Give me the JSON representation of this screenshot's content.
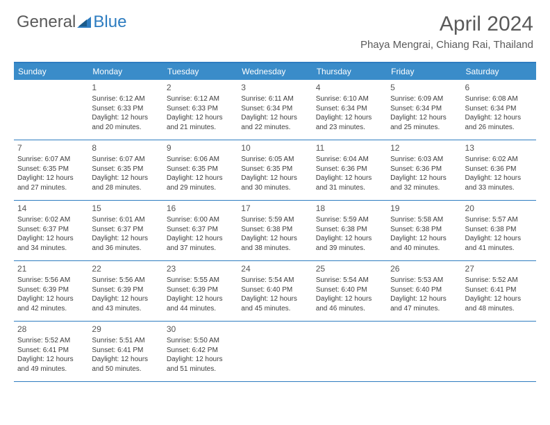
{
  "logo": {
    "part1": "General",
    "part2": "Blue"
  },
  "title": "April 2024",
  "location": "Phaya Mengrai, Chiang Rai, Thailand",
  "colors": {
    "header_bg": "#3a8cc9",
    "border": "#2d7cc0",
    "text": "#333333",
    "title_text": "#5a5a5a"
  },
  "weekdays": [
    "Sunday",
    "Monday",
    "Tuesday",
    "Wednesday",
    "Thursday",
    "Friday",
    "Saturday"
  ],
  "weeks": [
    [
      {
        "n": "",
        "sr": "",
        "ss": "",
        "dl": ""
      },
      {
        "n": "1",
        "sr": "Sunrise: 6:12 AM",
        "ss": "Sunset: 6:33 PM",
        "dl": "Daylight: 12 hours and 20 minutes."
      },
      {
        "n": "2",
        "sr": "Sunrise: 6:12 AM",
        "ss": "Sunset: 6:33 PM",
        "dl": "Daylight: 12 hours and 21 minutes."
      },
      {
        "n": "3",
        "sr": "Sunrise: 6:11 AM",
        "ss": "Sunset: 6:34 PM",
        "dl": "Daylight: 12 hours and 22 minutes."
      },
      {
        "n": "4",
        "sr": "Sunrise: 6:10 AM",
        "ss": "Sunset: 6:34 PM",
        "dl": "Daylight: 12 hours and 23 minutes."
      },
      {
        "n": "5",
        "sr": "Sunrise: 6:09 AM",
        "ss": "Sunset: 6:34 PM",
        "dl": "Daylight: 12 hours and 25 minutes."
      },
      {
        "n": "6",
        "sr": "Sunrise: 6:08 AM",
        "ss": "Sunset: 6:34 PM",
        "dl": "Daylight: 12 hours and 26 minutes."
      }
    ],
    [
      {
        "n": "7",
        "sr": "Sunrise: 6:07 AM",
        "ss": "Sunset: 6:35 PM",
        "dl": "Daylight: 12 hours and 27 minutes."
      },
      {
        "n": "8",
        "sr": "Sunrise: 6:07 AM",
        "ss": "Sunset: 6:35 PM",
        "dl": "Daylight: 12 hours and 28 minutes."
      },
      {
        "n": "9",
        "sr": "Sunrise: 6:06 AM",
        "ss": "Sunset: 6:35 PM",
        "dl": "Daylight: 12 hours and 29 minutes."
      },
      {
        "n": "10",
        "sr": "Sunrise: 6:05 AM",
        "ss": "Sunset: 6:35 PM",
        "dl": "Daylight: 12 hours and 30 minutes."
      },
      {
        "n": "11",
        "sr": "Sunrise: 6:04 AM",
        "ss": "Sunset: 6:36 PM",
        "dl": "Daylight: 12 hours and 31 minutes."
      },
      {
        "n": "12",
        "sr": "Sunrise: 6:03 AM",
        "ss": "Sunset: 6:36 PM",
        "dl": "Daylight: 12 hours and 32 minutes."
      },
      {
        "n": "13",
        "sr": "Sunrise: 6:02 AM",
        "ss": "Sunset: 6:36 PM",
        "dl": "Daylight: 12 hours and 33 minutes."
      }
    ],
    [
      {
        "n": "14",
        "sr": "Sunrise: 6:02 AM",
        "ss": "Sunset: 6:37 PM",
        "dl": "Daylight: 12 hours and 34 minutes."
      },
      {
        "n": "15",
        "sr": "Sunrise: 6:01 AM",
        "ss": "Sunset: 6:37 PM",
        "dl": "Daylight: 12 hours and 36 minutes."
      },
      {
        "n": "16",
        "sr": "Sunrise: 6:00 AM",
        "ss": "Sunset: 6:37 PM",
        "dl": "Daylight: 12 hours and 37 minutes."
      },
      {
        "n": "17",
        "sr": "Sunrise: 5:59 AM",
        "ss": "Sunset: 6:38 PM",
        "dl": "Daylight: 12 hours and 38 minutes."
      },
      {
        "n": "18",
        "sr": "Sunrise: 5:59 AM",
        "ss": "Sunset: 6:38 PM",
        "dl": "Daylight: 12 hours and 39 minutes."
      },
      {
        "n": "19",
        "sr": "Sunrise: 5:58 AM",
        "ss": "Sunset: 6:38 PM",
        "dl": "Daylight: 12 hours and 40 minutes."
      },
      {
        "n": "20",
        "sr": "Sunrise: 5:57 AM",
        "ss": "Sunset: 6:38 PM",
        "dl": "Daylight: 12 hours and 41 minutes."
      }
    ],
    [
      {
        "n": "21",
        "sr": "Sunrise: 5:56 AM",
        "ss": "Sunset: 6:39 PM",
        "dl": "Daylight: 12 hours and 42 minutes."
      },
      {
        "n": "22",
        "sr": "Sunrise: 5:56 AM",
        "ss": "Sunset: 6:39 PM",
        "dl": "Daylight: 12 hours and 43 minutes."
      },
      {
        "n": "23",
        "sr": "Sunrise: 5:55 AM",
        "ss": "Sunset: 6:39 PM",
        "dl": "Daylight: 12 hours and 44 minutes."
      },
      {
        "n": "24",
        "sr": "Sunrise: 5:54 AM",
        "ss": "Sunset: 6:40 PM",
        "dl": "Daylight: 12 hours and 45 minutes."
      },
      {
        "n": "25",
        "sr": "Sunrise: 5:54 AM",
        "ss": "Sunset: 6:40 PM",
        "dl": "Daylight: 12 hours and 46 minutes."
      },
      {
        "n": "26",
        "sr": "Sunrise: 5:53 AM",
        "ss": "Sunset: 6:40 PM",
        "dl": "Daylight: 12 hours and 47 minutes."
      },
      {
        "n": "27",
        "sr": "Sunrise: 5:52 AM",
        "ss": "Sunset: 6:41 PM",
        "dl": "Daylight: 12 hours and 48 minutes."
      }
    ],
    [
      {
        "n": "28",
        "sr": "Sunrise: 5:52 AM",
        "ss": "Sunset: 6:41 PM",
        "dl": "Daylight: 12 hours and 49 minutes."
      },
      {
        "n": "29",
        "sr": "Sunrise: 5:51 AM",
        "ss": "Sunset: 6:41 PM",
        "dl": "Daylight: 12 hours and 50 minutes."
      },
      {
        "n": "30",
        "sr": "Sunrise: 5:50 AM",
        "ss": "Sunset: 6:42 PM",
        "dl": "Daylight: 12 hours and 51 minutes."
      },
      {
        "n": "",
        "sr": "",
        "ss": "",
        "dl": ""
      },
      {
        "n": "",
        "sr": "",
        "ss": "",
        "dl": ""
      },
      {
        "n": "",
        "sr": "",
        "ss": "",
        "dl": ""
      },
      {
        "n": "",
        "sr": "",
        "ss": "",
        "dl": ""
      }
    ]
  ]
}
